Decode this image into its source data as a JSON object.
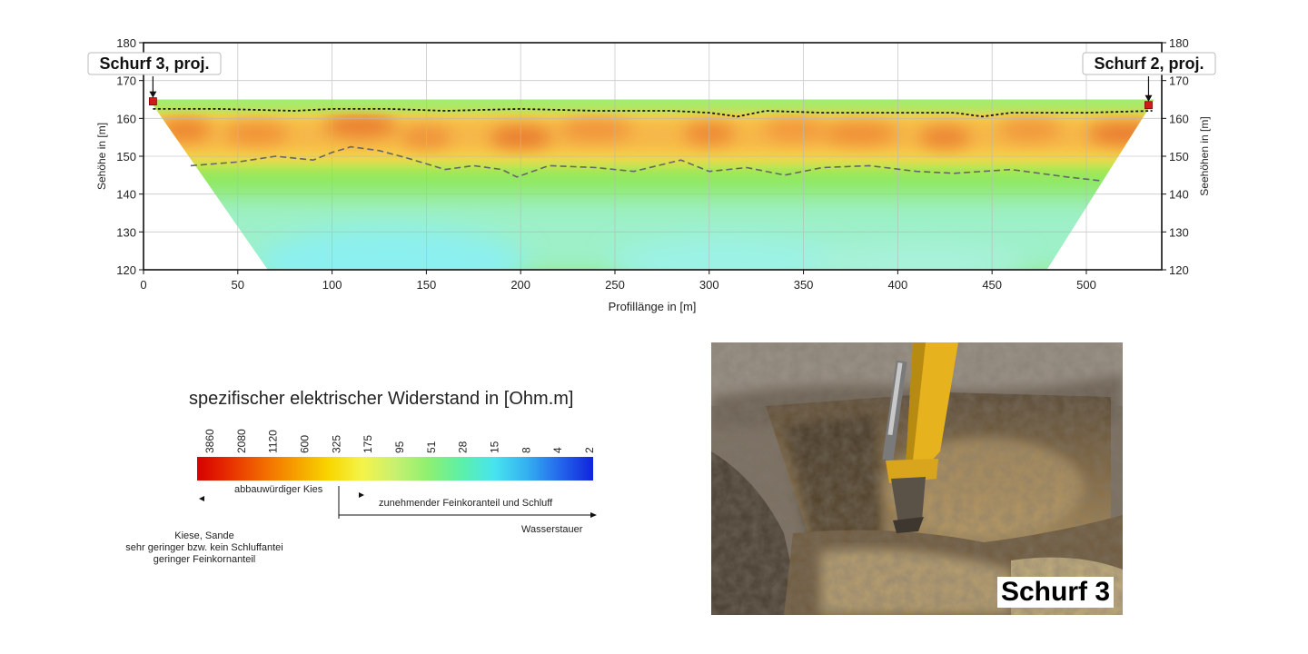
{
  "chart_data": {
    "type": "heatmap",
    "title": "",
    "xlabel": "Profillänge in [m]",
    "ylabel_left": "Sehöhe in [m]",
    "ylabel_right": "Seehöhen in [m]",
    "xlim": [
      0,
      540
    ],
    "ylim": [
      120,
      180
    ],
    "x_ticks": [
      "0",
      "50",
      "100",
      "150",
      "200",
      "250",
      "300",
      "350",
      "400",
      "450",
      "500"
    ],
    "y_ticks": [
      "120",
      "130",
      "140",
      "150",
      "160",
      "170",
      "180"
    ],
    "grid": true,
    "section_outline": {
      "top_left": [
        3,
        165
      ],
      "top_right": [
        536,
        165
      ],
      "bottom_left": [
        66,
        120
      ],
      "bottom_right": [
        479,
        120
      ]
    },
    "markers": [
      {
        "label": "Schurf 3, proj.",
        "x": 5,
        "y": 164.5
      },
      {
        "label": "Schurf 2, proj.",
        "x": 533,
        "y": 163.5
      }
    ],
    "upper_boundary": {
      "x": [
        5,
        40,
        80,
        100,
        130,
        160,
        200,
        240,
        280,
        300,
        315,
        330,
        360,
        400,
        430,
        445,
        460,
        500,
        535
      ],
      "y": [
        162.5,
        162.5,
        162,
        162.5,
        162.5,
        162,
        162.5,
        162,
        162,
        161.5,
        160.5,
        162,
        161.5,
        161.5,
        161.5,
        160.5,
        161.5,
        161.5,
        162
      ]
    },
    "lower_boundary": {
      "x": [
        25,
        50,
        70,
        90,
        100,
        110,
        125,
        140,
        160,
        175,
        190,
        198,
        215,
        240,
        260,
        285,
        300,
        320,
        340,
        360,
        385,
        410,
        430,
        460,
        490,
        508
      ],
      "y": [
        147.5,
        148.5,
        150,
        149,
        151,
        152.5,
        151.5,
        149.5,
        146.5,
        147.5,
        146.5,
        144.5,
        147.5,
        147,
        146,
        149,
        146,
        147,
        145,
        147,
        147.5,
        146,
        145.5,
        146.5,
        144.5,
        143.5
      ]
    },
    "colorbar": {
      "title": "spezifischer elektrischer Widerstand in [Ohm.m]",
      "ticks": [
        "3860",
        "2080",
        "1120",
        "600",
        "325",
        "175",
        "95",
        "51",
        "28",
        "15",
        "8",
        "4",
        "2"
      ],
      "colors": [
        "#d70000",
        "#e83000",
        "#f26a00",
        "#f6a000",
        "#f8d600",
        "#f4f44a",
        "#c8f070",
        "#8ef070",
        "#5cf0a8",
        "#48e4f0",
        "#34b0f0",
        "#2466ec",
        "#1024dc"
      ]
    }
  },
  "legend": {
    "class_gravel": "abbauwürdiger Kies",
    "class_fines": "zunehmender Feinkoranteil und Schluff",
    "class_aquitard": "Wasserstauer",
    "desc_line1": "Kiese, Sande",
    "desc_line2": "sehr geringer bzw. kein Schluffantei",
    "desc_line3": "geringer Feinkornanteil"
  },
  "photo": {
    "label": "Schurf 3"
  }
}
